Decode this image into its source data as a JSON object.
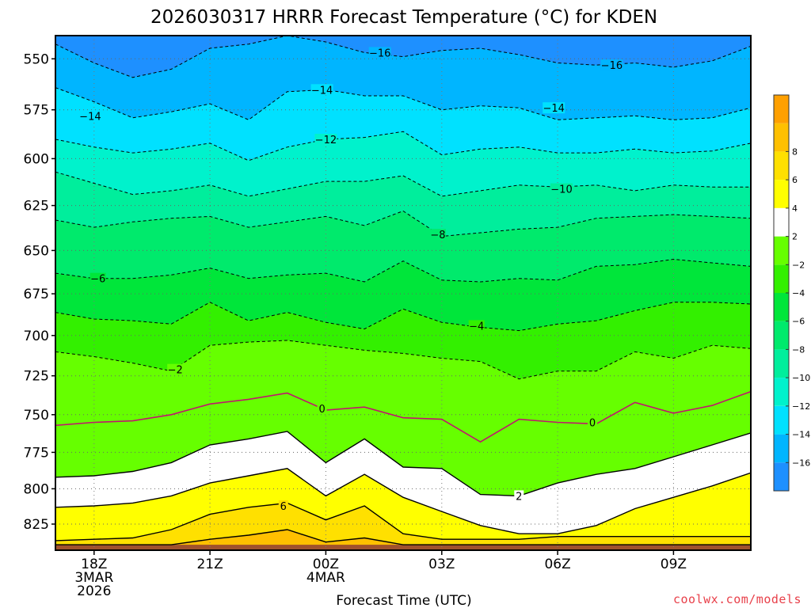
{
  "chart_data": {
    "type": "heatmap",
    "title": "2026030317 HRRR Forecast Temperature (°C) for KDEN",
    "xlabel": "Forecast Time (UTC)",
    "ylabel": "",
    "y_scale": "pressure (hPa), decreasing upward",
    "y_ticks": [
      550,
      575,
      600,
      625,
      650,
      675,
      700,
      725,
      750,
      775,
      800,
      825
    ],
    "ylim": [
      844,
      539
    ],
    "xlim": [
      -1,
      17
    ],
    "x_ticks": [
      {
        "pos": 0,
        "lines": [
          "18Z",
          "3MAR",
          "2026"
        ]
      },
      {
        "pos": 3,
        "lines": [
          "21Z"
        ]
      },
      {
        "pos": 6,
        "lines": [
          "00Z",
          "4MAR"
        ]
      },
      {
        "pos": 9,
        "lines": [
          "03Z"
        ]
      },
      {
        "pos": 12,
        "lines": [
          "06Z"
        ]
      },
      {
        "pos": 15,
        "lines": [
          "09Z"
        ]
      }
    ],
    "grid": true,
    "colorbar": {
      "placement": "right",
      "levels": [
        -18,
        -16,
        -14,
        -12,
        -10,
        -8,
        -6,
        -4,
        -2,
        2,
        4,
        6,
        8,
        10
      ],
      "colors": [
        "#1e90ff",
        "#00b5ff",
        "#00e1ff",
        "#00f2cc",
        "#00ee9c",
        "#00ea6c",
        "#00e63a",
        "#33f000",
        "#66ff00",
        "#ffffff",
        "#ffff00",
        "#ffe000",
        "#ffc000",
        "#ffa000"
      ],
      "labels": [
        "-16",
        "-14",
        "-12",
        "-10",
        "-8",
        "-6",
        "-4",
        "-2",
        "2",
        "4",
        "6",
        "8"
      ]
    },
    "terrain_pressure_hPa": 840,
    "terrain_color": "#a0522d",
    "x_hours": [
      -1,
      0,
      1,
      2,
      3,
      4,
      5,
      6,
      7,
      8,
      9,
      10,
      11,
      12,
      13,
      14,
      15,
      16,
      17
    ],
    "isotherms": [
      {
        "temp": -16,
        "p": [
          543,
          552,
          559,
          555,
          545,
          543,
          539,
          542,
          547,
          549,
          546,
          545,
          548,
          552,
          553,
          552,
          554,
          551,
          544
        ]
      },
      {
        "temp": -14,
        "p": [
          564,
          571,
          579,
          576,
          572,
          580,
          566,
          565,
          568,
          568,
          575,
          573,
          574,
          580,
          579,
          578,
          580,
          579,
          574
        ]
      },
      {
        "temp": -12,
        "p": [
          590,
          594,
          597,
          595,
          592,
          601,
          594,
          590,
          589,
          586,
          598,
          595,
          594,
          597,
          597,
          595,
          597,
          596,
          592
        ]
      },
      {
        "temp": -10,
        "p": [
          607,
          613,
          619,
          617,
          614,
          620,
          616,
          612,
          612,
          609,
          620,
          617,
          614,
          615,
          614,
          617,
          614,
          615,
          615
        ]
      },
      {
        "temp": -8,
        "p": [
          633,
          637,
          634,
          632,
          631,
          637,
          634,
          631,
          636,
          628,
          642,
          640,
          638,
          637,
          632,
          631,
          630,
          631,
          632
        ]
      },
      {
        "temp": -6,
        "p": [
          663,
          666,
          666,
          664,
          660,
          666,
          664,
          663,
          668,
          656,
          667,
          668,
          666,
          667,
          659,
          658,
          655,
          657,
          659
        ]
      },
      {
        "temp": -4,
        "p": [
          686,
          690,
          691,
          693,
          680,
          691,
          686,
          692,
          696,
          684,
          692,
          695,
          697,
          693,
          691,
          685,
          680,
          680,
          681
        ]
      },
      {
        "temp": -2,
        "p": [
          710,
          713,
          717,
          722,
          706,
          704,
          703,
          706,
          709,
          711,
          714,
          716,
          727,
          722,
          722,
          710,
          714,
          706,
          708
        ]
      },
      {
        "temp": 0,
        "p": [
          757,
          755,
          754,
          750,
          743,
          740,
          736,
          747,
          745,
          752,
          753,
          768,
          753,
          755,
          756,
          742,
          749,
          744,
          735
        ]
      },
      {
        "temp": 2,
        "p": [
          792,
          791,
          788,
          782,
          770,
          766,
          761,
          782,
          766,
          785,
          786,
          804,
          805,
          796,
          790,
          786,
          778,
          770,
          762
        ]
      },
      {
        "temp": 4,
        "p": [
          813,
          812,
          810,
          805,
          796,
          791,
          786,
          805,
          790,
          806,
          816,
          826,
          832,
          832,
          826,
          814,
          806,
          798,
          789
        ]
      },
      {
        "temp": 6,
        "p": [
          837,
          836,
          835,
          829,
          818,
          813,
          810,
          822,
          812,
          832,
          836,
          836,
          836,
          834,
          834,
          834,
          834,
          834,
          834
        ]
      },
      {
        "temp": 8,
        "p": [
          840,
          840,
          840,
          840,
          836,
          833,
          829,
          838,
          835,
          840,
          840,
          840,
          840,
          840,
          840,
          840,
          840,
          840,
          840
        ]
      }
    ],
    "contour_labels": [
      {
        "text": "-16",
        "x": 7.4,
        "p": 547
      },
      {
        "text": "-16",
        "x": 13.4,
        "p": 553
      },
      {
        "text": "-14",
        "x": -0.1,
        "p": 578
      },
      {
        "text": "-14",
        "x": 5.9,
        "p": 565
      },
      {
        "text": "-14",
        "x": 11.9,
        "p": 574
      },
      {
        "text": "-12",
        "x": 6.0,
        "p": 590
      },
      {
        "text": "-10",
        "x": 12.1,
        "p": 616
      },
      {
        "text": "-8",
        "x": 8.9,
        "p": 641
      },
      {
        "text": "-6",
        "x": 0.1,
        "p": 666
      },
      {
        "text": "-4",
        "x": 9.9,
        "p": 694
      },
      {
        "text": "-2",
        "x": 2.1,
        "p": 721
      },
      {
        "text": "0",
        "x": 5.9,
        "p": 746
      },
      {
        "text": "0",
        "x": 12.9,
        "p": 755
      },
      {
        "text": "2",
        "x": 11.0,
        "p": 805
      },
      {
        "text": "6",
        "x": 4.9,
        "p": 812
      }
    ]
  },
  "credit": "coolwx.com/models"
}
